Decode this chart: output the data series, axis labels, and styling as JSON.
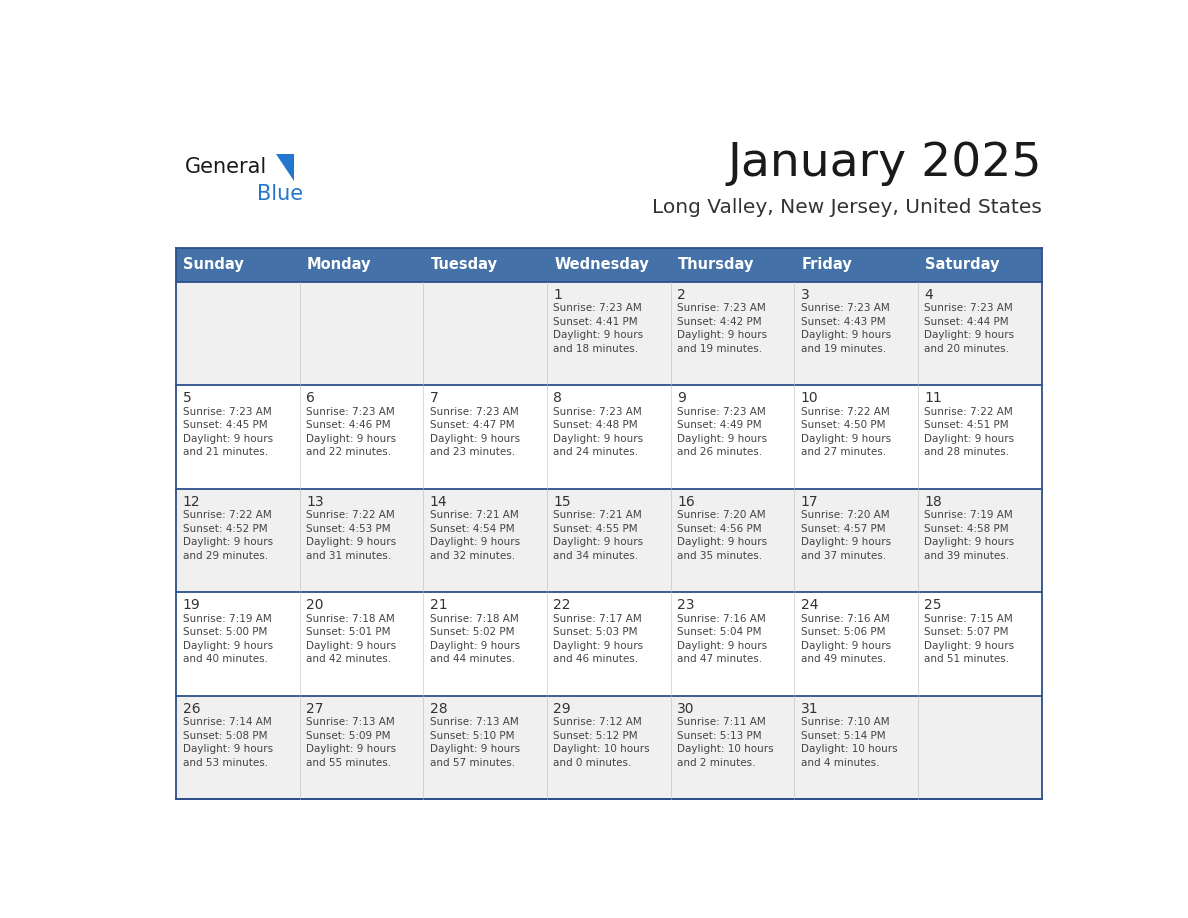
{
  "title": "January 2025",
  "subtitle": "Long Valley, New Jersey, United States",
  "header_bg": "#4472a8",
  "header_text_color": "#ffffff",
  "cell_bg_odd": "#f0f0f0",
  "cell_bg_even": "#ffffff",
  "text_color": "#333333",
  "day_number_color": "#333333",
  "border_color": "#2e4f8a",
  "days_of_week": [
    "Sunday",
    "Monday",
    "Tuesday",
    "Wednesday",
    "Thursday",
    "Friday",
    "Saturday"
  ],
  "weeks": [
    [
      {
        "day": null,
        "info": null
      },
      {
        "day": null,
        "info": null
      },
      {
        "day": null,
        "info": null
      },
      {
        "day": 1,
        "info": "Sunrise: 7:23 AM\nSunset: 4:41 PM\nDaylight: 9 hours\nand 18 minutes."
      },
      {
        "day": 2,
        "info": "Sunrise: 7:23 AM\nSunset: 4:42 PM\nDaylight: 9 hours\nand 19 minutes."
      },
      {
        "day": 3,
        "info": "Sunrise: 7:23 AM\nSunset: 4:43 PM\nDaylight: 9 hours\nand 19 minutes."
      },
      {
        "day": 4,
        "info": "Sunrise: 7:23 AM\nSunset: 4:44 PM\nDaylight: 9 hours\nand 20 minutes."
      }
    ],
    [
      {
        "day": 5,
        "info": "Sunrise: 7:23 AM\nSunset: 4:45 PM\nDaylight: 9 hours\nand 21 minutes."
      },
      {
        "day": 6,
        "info": "Sunrise: 7:23 AM\nSunset: 4:46 PM\nDaylight: 9 hours\nand 22 minutes."
      },
      {
        "day": 7,
        "info": "Sunrise: 7:23 AM\nSunset: 4:47 PM\nDaylight: 9 hours\nand 23 minutes."
      },
      {
        "day": 8,
        "info": "Sunrise: 7:23 AM\nSunset: 4:48 PM\nDaylight: 9 hours\nand 24 minutes."
      },
      {
        "day": 9,
        "info": "Sunrise: 7:23 AM\nSunset: 4:49 PM\nDaylight: 9 hours\nand 26 minutes."
      },
      {
        "day": 10,
        "info": "Sunrise: 7:22 AM\nSunset: 4:50 PM\nDaylight: 9 hours\nand 27 minutes."
      },
      {
        "day": 11,
        "info": "Sunrise: 7:22 AM\nSunset: 4:51 PM\nDaylight: 9 hours\nand 28 minutes."
      }
    ],
    [
      {
        "day": 12,
        "info": "Sunrise: 7:22 AM\nSunset: 4:52 PM\nDaylight: 9 hours\nand 29 minutes."
      },
      {
        "day": 13,
        "info": "Sunrise: 7:22 AM\nSunset: 4:53 PM\nDaylight: 9 hours\nand 31 minutes."
      },
      {
        "day": 14,
        "info": "Sunrise: 7:21 AM\nSunset: 4:54 PM\nDaylight: 9 hours\nand 32 minutes."
      },
      {
        "day": 15,
        "info": "Sunrise: 7:21 AM\nSunset: 4:55 PM\nDaylight: 9 hours\nand 34 minutes."
      },
      {
        "day": 16,
        "info": "Sunrise: 7:20 AM\nSunset: 4:56 PM\nDaylight: 9 hours\nand 35 minutes."
      },
      {
        "day": 17,
        "info": "Sunrise: 7:20 AM\nSunset: 4:57 PM\nDaylight: 9 hours\nand 37 minutes."
      },
      {
        "day": 18,
        "info": "Sunrise: 7:19 AM\nSunset: 4:58 PM\nDaylight: 9 hours\nand 39 minutes."
      }
    ],
    [
      {
        "day": 19,
        "info": "Sunrise: 7:19 AM\nSunset: 5:00 PM\nDaylight: 9 hours\nand 40 minutes."
      },
      {
        "day": 20,
        "info": "Sunrise: 7:18 AM\nSunset: 5:01 PM\nDaylight: 9 hours\nand 42 minutes."
      },
      {
        "day": 21,
        "info": "Sunrise: 7:18 AM\nSunset: 5:02 PM\nDaylight: 9 hours\nand 44 minutes."
      },
      {
        "day": 22,
        "info": "Sunrise: 7:17 AM\nSunset: 5:03 PM\nDaylight: 9 hours\nand 46 minutes."
      },
      {
        "day": 23,
        "info": "Sunrise: 7:16 AM\nSunset: 5:04 PM\nDaylight: 9 hours\nand 47 minutes."
      },
      {
        "day": 24,
        "info": "Sunrise: 7:16 AM\nSunset: 5:06 PM\nDaylight: 9 hours\nand 49 minutes."
      },
      {
        "day": 25,
        "info": "Sunrise: 7:15 AM\nSunset: 5:07 PM\nDaylight: 9 hours\nand 51 minutes."
      }
    ],
    [
      {
        "day": 26,
        "info": "Sunrise: 7:14 AM\nSunset: 5:08 PM\nDaylight: 9 hours\nand 53 minutes."
      },
      {
        "day": 27,
        "info": "Sunrise: 7:13 AM\nSunset: 5:09 PM\nDaylight: 9 hours\nand 55 minutes."
      },
      {
        "day": 28,
        "info": "Sunrise: 7:13 AM\nSunset: 5:10 PM\nDaylight: 9 hours\nand 57 minutes."
      },
      {
        "day": 29,
        "info": "Sunrise: 7:12 AM\nSunset: 5:12 PM\nDaylight: 10 hours\nand 0 minutes."
      },
      {
        "day": 30,
        "info": "Sunrise: 7:11 AM\nSunset: 5:13 PM\nDaylight: 10 hours\nand 2 minutes."
      },
      {
        "day": 31,
        "info": "Sunrise: 7:10 AM\nSunset: 5:14 PM\nDaylight: 10 hours\nand 4 minutes."
      },
      {
        "day": null,
        "info": null
      }
    ]
  ],
  "logo_text1": "General",
  "logo_text2": "Blue",
  "logo_triangle_color": "#2277cc"
}
